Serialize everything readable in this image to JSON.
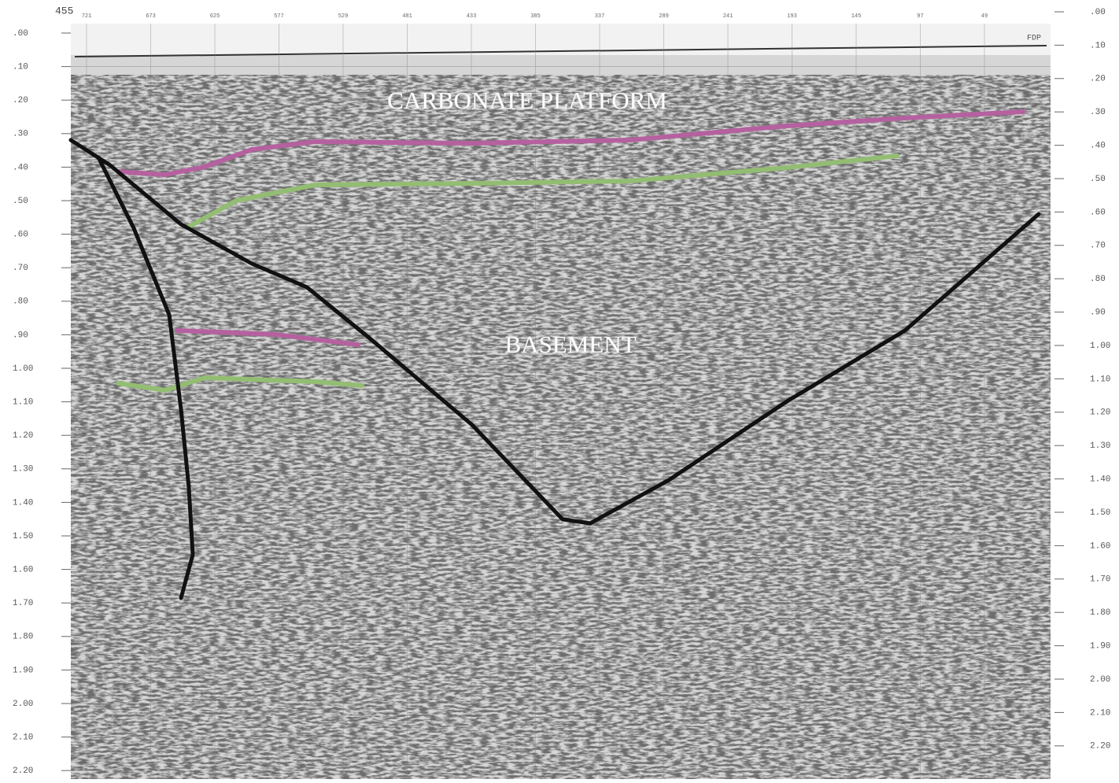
{
  "header": {
    "line_label": "455",
    "right_marker": "FDP"
  },
  "shotpoints": [
    "721",
    "673",
    "625",
    "577",
    "529",
    "481",
    "433",
    "385",
    "337",
    "289",
    "241",
    "193",
    "145",
    "97",
    "49"
  ],
  "left_axis": [
    ".00",
    ".10",
    ".20",
    ".30",
    ".40",
    ".50",
    ".60",
    ".70",
    ".80",
    ".90",
    "1.00",
    "1.10",
    "1.20",
    "1.30",
    "1.40",
    "1.50",
    "1.60",
    "1.70",
    "1.80",
    "1.90",
    "2.00",
    "2.10",
    "2.20"
  ],
  "right_axis": [
    ".00",
    ".10",
    ".20",
    ".30",
    ".40",
    ".50",
    ".60",
    ".70",
    ".80",
    ".90",
    "1.00",
    "1.10",
    "1.20",
    "1.30",
    "1.40",
    "1.50",
    "1.60",
    "1.70",
    "1.80",
    "1.90",
    "2.00",
    "2.10",
    "2.20"
  ],
  "labels": {
    "upper": "CARBONATE PLATFORM",
    "lower": "BASEMENT"
  }
}
